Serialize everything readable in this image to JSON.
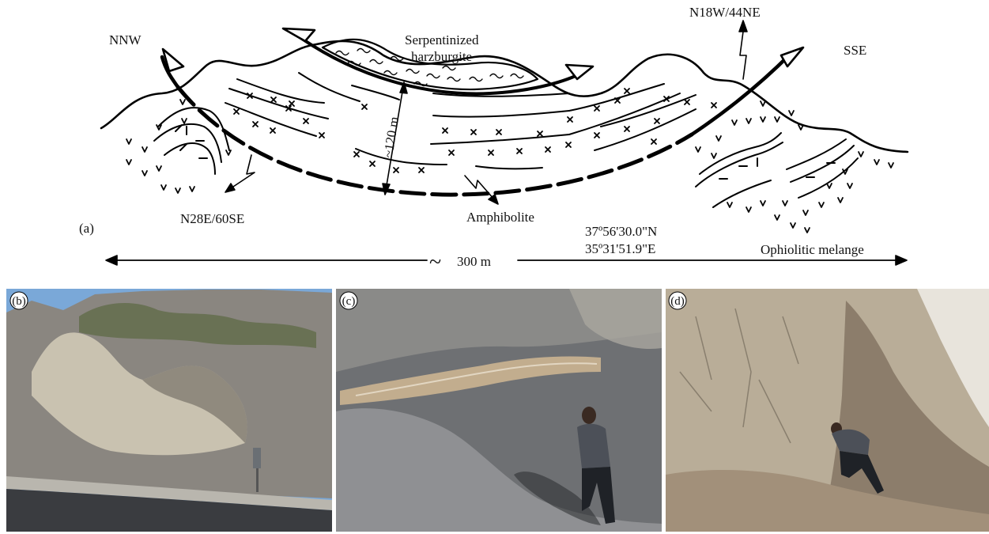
{
  "panel_a": {
    "panel_label": "(a)",
    "direction_left": "NNW",
    "direction_right": "SSE",
    "harzburgite_line1": "Serpentinized",
    "harzburgite_line2": "harzburgite",
    "attitude_top": "N18W/44NE",
    "attitude_left": "N28E/60SE",
    "thickness": "~120 m",
    "amphibolite": "Amphibolite",
    "coord_lat": "37º56'30.0\"N",
    "coord_lon": "35º31'51.9\"E",
    "melange": "Ophiolitic melange",
    "scale_tilde": "~",
    "scale_text": "300 m"
  },
  "photos": [
    {
      "label": "(b)",
      "sky": "#7aa8d8",
      "slope": "#8a8680",
      "outcrop": "#c9c2b0",
      "road": "#3a3c40"
    },
    {
      "label": "(c)",
      "slope": "#6e7073",
      "band": "#c2ad8e",
      "scree": "#8f9093"
    },
    {
      "label": "(d)",
      "rock": "#b9ad98",
      "shade": "#8c7d6b",
      "light": "#e8e4dc"
    }
  ]
}
